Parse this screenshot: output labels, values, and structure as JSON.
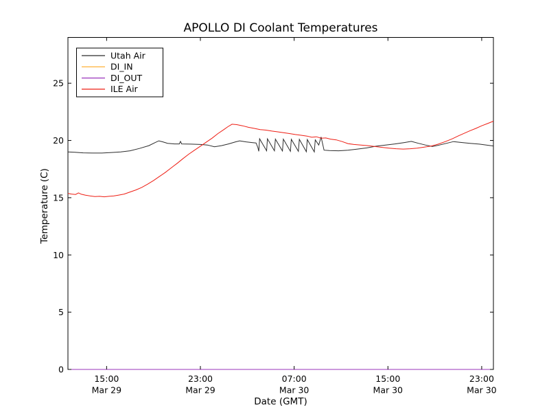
{
  "figure": {
    "background": "#ffffff",
    "axis_color": "#000000",
    "text_color": "#000000"
  },
  "chart_data": {
    "type": "line",
    "title": "APOLLO DI Coolant Temperatures",
    "xlabel": "Date (GMT)",
    "ylabel": "Temperature (C)",
    "grid": false,
    "legend_position": "upper-left",
    "x_axis_note": "x values are hours since Mar 29 00:00 GMT",
    "xlim": [
      11.7,
      48.0
    ],
    "ylim": [
      0,
      29
    ],
    "yticks": [
      0,
      5,
      10,
      15,
      20,
      25
    ],
    "xticks": [
      {
        "hour": 15,
        "line1": "15:00",
        "line2": "Mar 29"
      },
      {
        "hour": 23,
        "line1": "23:00",
        "line2": "Mar 29"
      },
      {
        "hour": 31,
        "line1": "07:00",
        "line2": "Mar 30"
      },
      {
        "hour": 39,
        "line1": "15:00",
        "line2": "Mar 30"
      },
      {
        "hour": 47,
        "line1": "23:00",
        "line2": "Mar 30"
      }
    ],
    "series": [
      {
        "name": "Utah Air",
        "color": "#2a2a2a",
        "points": [
          [
            11.7,
            19.0
          ],
          [
            12.3,
            18.97
          ],
          [
            13.0,
            18.92
          ],
          [
            13.8,
            18.9
          ],
          [
            14.6,
            18.9
          ],
          [
            15.4,
            18.95
          ],
          [
            16.2,
            19.0
          ],
          [
            17.0,
            19.1
          ],
          [
            17.8,
            19.3
          ],
          [
            18.6,
            19.55
          ],
          [
            19.1,
            19.8
          ],
          [
            19.45,
            19.97
          ],
          [
            19.8,
            19.88
          ],
          [
            20.2,
            19.75
          ],
          [
            20.8,
            19.7
          ],
          [
            21.2,
            19.7
          ],
          [
            21.3,
            19.92
          ],
          [
            21.4,
            19.7
          ],
          [
            22.2,
            19.68
          ],
          [
            23.0,
            19.65
          ],
          [
            23.6,
            19.6
          ],
          [
            24.2,
            19.45
          ],
          [
            24.8,
            19.55
          ],
          [
            25.4,
            19.7
          ],
          [
            26.0,
            19.88
          ],
          [
            26.35,
            19.97
          ],
          [
            26.9,
            19.88
          ],
          [
            27.4,
            19.82
          ],
          [
            27.75,
            19.78
          ],
          [
            27.9,
            19.4
          ],
          [
            27.98,
            19.05
          ],
          [
            28.05,
            20.15
          ],
          [
            28.65,
            19.1
          ],
          [
            28.72,
            20.15
          ],
          [
            29.32,
            19.1
          ],
          [
            29.4,
            20.12
          ],
          [
            30.0,
            19.08
          ],
          [
            30.08,
            20.12
          ],
          [
            30.68,
            19.05
          ],
          [
            30.76,
            20.1
          ],
          [
            31.36,
            19.05
          ],
          [
            31.44,
            20.1
          ],
          [
            32.04,
            19.02
          ],
          [
            32.12,
            20.08
          ],
          [
            32.72,
            19.0
          ],
          [
            32.8,
            20.05
          ],
          [
            33.1,
            19.6
          ],
          [
            33.3,
            20.3
          ],
          [
            33.55,
            19.15
          ],
          [
            34.0,
            19.12
          ],
          [
            34.8,
            19.1
          ],
          [
            35.6,
            19.15
          ],
          [
            36.4,
            19.25
          ],
          [
            37.2,
            19.35
          ],
          [
            38.0,
            19.5
          ],
          [
            38.8,
            19.6
          ],
          [
            39.6,
            19.7
          ],
          [
            40.4,
            19.82
          ],
          [
            41.0,
            19.92
          ],
          [
            41.6,
            19.75
          ],
          [
            42.2,
            19.6
          ],
          [
            42.8,
            19.47
          ],
          [
            43.4,
            19.6
          ],
          [
            44.0,
            19.75
          ],
          [
            44.6,
            19.9
          ],
          [
            45.2,
            19.83
          ],
          [
            46.0,
            19.75
          ],
          [
            46.8,
            19.68
          ],
          [
            47.4,
            19.6
          ],
          [
            48.0,
            19.52
          ]
        ]
      },
      {
        "name": "DI_IN",
        "color": "#ffa820",
        "points": [
          [
            11.7,
            0
          ],
          [
            48.0,
            0
          ]
        ]
      },
      {
        "name": "DI_OUT",
        "color": "#9933bb",
        "points": [
          [
            11.7,
            0
          ],
          [
            48.0,
            0
          ]
        ]
      },
      {
        "name": "ILE Air",
        "color": "#ee1c12",
        "points": [
          [
            11.7,
            15.38
          ],
          [
            12.0,
            15.32
          ],
          [
            12.35,
            15.28
          ],
          [
            12.6,
            15.42
          ],
          [
            12.85,
            15.3
          ],
          [
            13.2,
            15.22
          ],
          [
            13.6,
            15.15
          ],
          [
            14.0,
            15.1
          ],
          [
            14.4,
            15.12
          ],
          [
            14.8,
            15.08
          ],
          [
            15.2,
            15.12
          ],
          [
            15.6,
            15.15
          ],
          [
            16.0,
            15.22
          ],
          [
            16.5,
            15.32
          ],
          [
            17.0,
            15.5
          ],
          [
            17.5,
            15.68
          ],
          [
            18.0,
            15.9
          ],
          [
            18.5,
            16.18
          ],
          [
            19.0,
            16.5
          ],
          [
            19.5,
            16.85
          ],
          [
            20.0,
            17.2
          ],
          [
            20.5,
            17.6
          ],
          [
            21.0,
            17.98
          ],
          [
            21.5,
            18.4
          ],
          [
            22.0,
            18.8
          ],
          [
            22.5,
            19.15
          ],
          [
            23.0,
            19.5
          ],
          [
            23.5,
            19.85
          ],
          [
            24.0,
            20.2
          ],
          [
            24.5,
            20.6
          ],
          [
            25.0,
            20.95
          ],
          [
            25.35,
            21.2
          ],
          [
            25.7,
            21.42
          ],
          [
            26.1,
            21.38
          ],
          [
            26.6,
            21.28
          ],
          [
            27.1,
            21.15
          ],
          [
            27.6,
            21.05
          ],
          [
            28.1,
            20.95
          ],
          [
            28.6,
            20.9
          ],
          [
            29.1,
            20.82
          ],
          [
            29.6,
            20.75
          ],
          [
            30.1,
            20.68
          ],
          [
            30.6,
            20.6
          ],
          [
            31.1,
            20.52
          ],
          [
            31.6,
            20.45
          ],
          [
            32.1,
            20.38
          ],
          [
            32.5,
            20.28
          ],
          [
            32.9,
            20.32
          ],
          [
            33.3,
            20.2
          ],
          [
            33.7,
            20.22
          ],
          [
            34.1,
            20.12
          ],
          [
            34.6,
            20.05
          ],
          [
            35.1,
            19.9
          ],
          [
            35.6,
            19.72
          ],
          [
            36.1,
            19.65
          ],
          [
            36.7,
            19.6
          ],
          [
            37.3,
            19.55
          ],
          [
            37.9,
            19.47
          ],
          [
            38.5,
            19.4
          ],
          [
            39.1,
            19.33
          ],
          [
            39.7,
            19.28
          ],
          [
            40.3,
            19.25
          ],
          [
            40.9,
            19.28
          ],
          [
            41.5,
            19.33
          ],
          [
            42.1,
            19.42
          ],
          [
            42.7,
            19.52
          ],
          [
            43.3,
            19.68
          ],
          [
            43.9,
            19.9
          ],
          [
            44.5,
            20.15
          ],
          [
            45.0,
            20.4
          ],
          [
            45.5,
            20.62
          ],
          [
            46.0,
            20.85
          ],
          [
            46.5,
            21.05
          ],
          [
            47.0,
            21.28
          ],
          [
            47.5,
            21.48
          ],
          [
            48.0,
            21.68
          ]
        ]
      }
    ]
  }
}
